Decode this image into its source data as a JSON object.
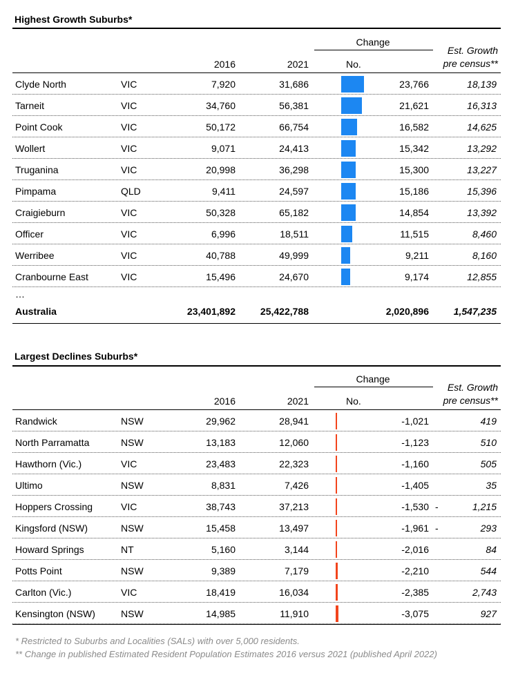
{
  "growth": {
    "title": "Highest Growth Suburbs*",
    "headers": {
      "y2016": "2016",
      "y2021": "2021",
      "change_group": "Change",
      "no": "No.",
      "est_line1": "Est. Growth",
      "est_line2": "pre census**"
    },
    "bar_color": "#1c87f2",
    "rows": [
      {
        "suburb": "Clyde North",
        "state": "VIC",
        "v2016": "7,920",
        "v2021": "31,686",
        "change_num": 23766,
        "change": "23,766",
        "est": "18,139"
      },
      {
        "suburb": "Tarneit",
        "state": "VIC",
        "v2016": "34,760",
        "v2021": "56,381",
        "change_num": 21621,
        "change": "21,621",
        "est": "16,313"
      },
      {
        "suburb": "Point Cook",
        "state": "VIC",
        "v2016": "50,172",
        "v2021": "66,754",
        "change_num": 16582,
        "change": "16,582",
        "est": "14,625"
      },
      {
        "suburb": "Wollert",
        "state": "VIC",
        "v2016": "9,071",
        "v2021": "24,413",
        "change_num": 15342,
        "change": "15,342",
        "est": "13,292"
      },
      {
        "suburb": "Truganina",
        "state": "VIC",
        "v2016": "20,998",
        "v2021": "36,298",
        "change_num": 15300,
        "change": "15,300",
        "est": "13,227"
      },
      {
        "suburb": "Pimpama",
        "state": "QLD",
        "v2016": "9,411",
        "v2021": "24,597",
        "change_num": 15186,
        "change": "15,186",
        "est": "15,396"
      },
      {
        "suburb": "Craigieburn",
        "state": "VIC",
        "v2016": "50,328",
        "v2021": "65,182",
        "change_num": 14854,
        "change": "14,854",
        "est": "13,392"
      },
      {
        "suburb": "Officer",
        "state": "VIC",
        "v2016": "6,996",
        "v2021": "18,511",
        "change_num": 11515,
        "change": "11,515",
        "est": "8,460"
      },
      {
        "suburb": "Werribee",
        "state": "VIC",
        "v2016": "40,788",
        "v2021": "49,999",
        "change_num": 9211,
        "change": "9,211",
        "est": "8,160"
      },
      {
        "suburb": "Cranbourne East",
        "state": "VIC",
        "v2016": "15,496",
        "v2021": "24,670",
        "change_num": 9174,
        "change": "9,174",
        "est": "12,855"
      }
    ],
    "ellipsis": "…",
    "total": {
      "suburb": "Australia",
      "v2016": "23,401,892",
      "v2021": "25,422,788",
      "change": "2,020,896",
      "est": "1,547,235"
    }
  },
  "declines": {
    "title": "Largest Declines Suburbs*",
    "headers": {
      "y2016": "2016",
      "y2021": "2021",
      "change_group": "Change",
      "no": "No.",
      "est_line1": "Est. Growth",
      "est_line2": "pre census**"
    },
    "bar_color": "#f2441c",
    "rows": [
      {
        "suburb": "Randwick",
        "state": "NSW",
        "v2016": "29,962",
        "v2021": "28,941",
        "change_num": -1021,
        "change": "-1,021",
        "dash": "",
        "est": "419"
      },
      {
        "suburb": "North Parramatta",
        "state": "NSW",
        "v2016": "13,183",
        "v2021": "12,060",
        "change_num": -1123,
        "change": "-1,123",
        "dash": "",
        "est": "510"
      },
      {
        "suburb": "Hawthorn (Vic.)",
        "state": "VIC",
        "v2016": "23,483",
        "v2021": "22,323",
        "change_num": -1160,
        "change": "-1,160",
        "dash": "",
        "est": "505"
      },
      {
        "suburb": "Ultimo",
        "state": "NSW",
        "v2016": "8,831",
        "v2021": "7,426",
        "change_num": -1405,
        "change": "-1,405",
        "dash": "",
        "est": "35"
      },
      {
        "suburb": "Hoppers Crossing",
        "state": "VIC",
        "v2016": "38,743",
        "v2021": "37,213",
        "change_num": -1530,
        "change": "-1,530",
        "dash": "-",
        "est": "1,215"
      },
      {
        "suburb": "Kingsford (NSW)",
        "state": "NSW",
        "v2016": "15,458",
        "v2021": "13,497",
        "change_num": -1961,
        "change": "-1,961",
        "dash": "-",
        "est": "293"
      },
      {
        "suburb": "Howard Springs",
        "state": "NT",
        "v2016": "5,160",
        "v2021": "3,144",
        "change_num": -2016,
        "change": "-2,016",
        "dash": "",
        "est": "84"
      },
      {
        "suburb": "Potts Point",
        "state": "NSW",
        "v2016": "9,389",
        "v2021": "7,179",
        "change_num": -2210,
        "change": "-2,210",
        "dash": "",
        "est": "544"
      },
      {
        "suburb": "Carlton (Vic.)",
        "state": "VIC",
        "v2016": "18,419",
        "v2021": "16,034",
        "change_num": -2385,
        "change": "-2,385",
        "dash": "",
        "est": "2,743"
      },
      {
        "suburb": "Kensington (NSW)",
        "state": "NSW",
        "v2016": "14,985",
        "v2021": "11,910",
        "change_num": -3075,
        "change": "-3,075",
        "dash": "",
        "est": "927"
      }
    ]
  },
  "footnotes": {
    "note1": "* Restricted to Suburbs and Localities (SALs) with over 5,000 residents.",
    "note2": "** Change in published Estimated Resident Population Estimates 2016 versus 2021 (published April 2022)"
  }
}
